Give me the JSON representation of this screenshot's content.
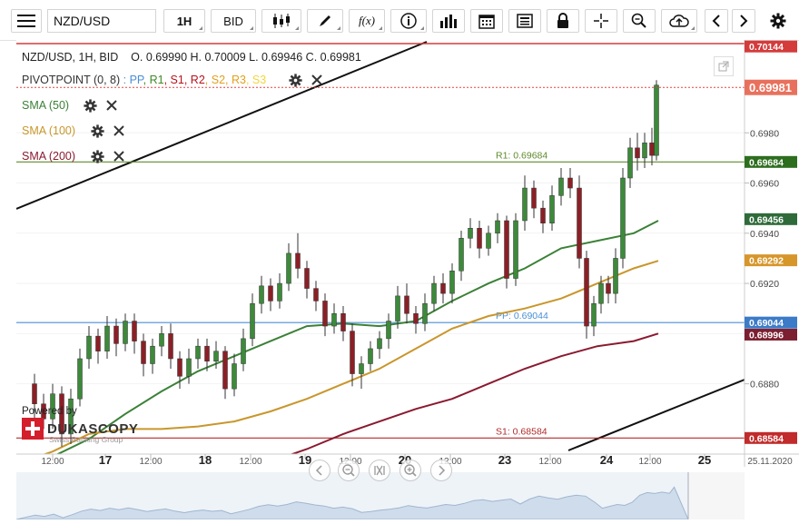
{
  "toolbar": {
    "menu_icon": "hamburger-menu-icon",
    "symbol": "NZD/USD",
    "timeframe": "1H",
    "side": "BID",
    "icons": [
      "candlestick-type-icon",
      "pencil-draw-icon",
      "function-fx-icon",
      "info-icon",
      "volume-bars-icon",
      "calendar-icon",
      "news-icon",
      "lock-icon",
      "crosshair-icon",
      "zoom-icon",
      "cloud-upload-icon",
      "arrow-left-icon",
      "arrow-right-icon",
      "gear-icon"
    ],
    "fx_label": "f(x)"
  },
  "header": {
    "symbol_line": "NZD/USD, 1H, BID",
    "ohlc": "O. 0.69990 H. 0.70009 L. 0.69946 C. 0.69981"
  },
  "indicators": {
    "pivot": {
      "label": "PIVOTPOINT (0, 8)",
      "sep": ":",
      "parts": [
        {
          "text": "PP",
          "color": "#4a8fd6"
        },
        {
          "text": "R1",
          "color": "#3f8a24"
        },
        {
          "text": "S1",
          "color": "#b8121b"
        },
        {
          "text": "R2",
          "color": "#b8121b"
        },
        {
          "text": "S2",
          "color": "#e3a01b"
        },
        {
          "text": "R3",
          "color": "#e3a01b"
        },
        {
          "text": "S3",
          "color": "#f2d73a"
        }
      ]
    },
    "sma": [
      {
        "label": "SMA (50)",
        "color": "#3b8137"
      },
      {
        "label": "SMA (100)",
        "color": "#c9962b"
      },
      {
        "label": "SMA (200)",
        "color": "#8a1a30"
      }
    ]
  },
  "watermark": {
    "powered_by": "Powered by",
    "brand": "DUKASCOPY",
    "tagline": "Swiss Banking Group"
  },
  "chart_data": {
    "type": "line",
    "title": "NZD/USD, 1H, BID",
    "ylim": [
      0.6852,
      0.7017
    ],
    "y_ticks": [
      0.688,
      0.69,
      0.692,
      0.694,
      0.696,
      0.698
    ],
    "x_ticks": [
      "12:00",
      "17",
      "12:00",
      "18",
      "12:00",
      "19",
      "12:00",
      "20",
      "12:00",
      "23",
      "12:00",
      "24",
      "12:00",
      "25"
    ],
    "x_bold": [
      "17",
      "18",
      "19",
      "20",
      "23",
      "24",
      "25"
    ],
    "date_label": "25.11.2020",
    "price_badges": [
      {
        "value": "0.70144",
        "color": "#d43b3b"
      },
      {
        "value": "0.69981",
        "color": "#e8715d"
      },
      {
        "value": "0.69684",
        "color": "#2e6e1f"
      },
      {
        "value": "0.69456",
        "color": "#2f6b3a"
      },
      {
        "value": "0.69292",
        "color": "#d7962a"
      },
      {
        "value": "0.69044",
        "color": "#3c7bc7"
      },
      {
        "value": "0.68996",
        "color": "#7c1f31"
      },
      {
        "value": "0.68584",
        "color": "#c12b2b"
      }
    ],
    "pivot_levels": [
      {
        "name": "R1",
        "label": "R1: 0.69684",
        "value": 0.69684,
        "color": "#5f8a2b"
      },
      {
        "name": "PP",
        "label": "PP: 0.69044",
        "value": 0.69044,
        "color": "#4a8fd6"
      },
      {
        "name": "S1",
        "label": "S1: 0.68584",
        "value": 0.68584,
        "color": "#b22a2a"
      }
    ],
    "current_price": 0.69981,
    "series": [
      {
        "name": "SMA (50)",
        "color": "#3b8137",
        "values": [
          [
            0,
            0.6848
          ],
          [
            40,
            0.6851
          ],
          [
            80,
            0.6858
          ],
          [
            120,
            0.6868
          ],
          [
            160,
            0.6877
          ],
          [
            200,
            0.6885
          ],
          [
            240,
            0.6891
          ],
          [
            280,
            0.6897
          ],
          [
            320,
            0.6903
          ],
          [
            360,
            0.6904
          ],
          [
            400,
            0.6903
          ],
          [
            440,
            0.6905
          ],
          [
            480,
            0.6913
          ],
          [
            520,
            0.692
          ],
          [
            560,
            0.6926
          ],
          [
            600,
            0.6934
          ],
          [
            640,
            0.6937
          ],
          [
            680,
            0.694
          ],
          [
            707,
            0.6945
          ]
        ]
      },
      {
        "name": "SMA (100)",
        "color": "#c9962b",
        "values": [
          [
            0,
            0.6848
          ],
          [
            40,
            0.6853
          ],
          [
            80,
            0.686
          ],
          [
            120,
            0.6862
          ],
          [
            160,
            0.6862
          ],
          [
            200,
            0.6863
          ],
          [
            240,
            0.6865
          ],
          [
            280,
            0.6869
          ],
          [
            320,
            0.6874
          ],
          [
            360,
            0.688
          ],
          [
            400,
            0.6886
          ],
          [
            440,
            0.6894
          ],
          [
            480,
            0.6902
          ],
          [
            520,
            0.6907
          ],
          [
            560,
            0.691
          ],
          [
            600,
            0.6914
          ],
          [
            640,
            0.692
          ],
          [
            680,
            0.6926
          ],
          [
            707,
            0.6929
          ]
        ]
      },
      {
        "name": "SMA (200)",
        "color": "#8a1a30",
        "values": [
          [
            240,
            0.6844
          ],
          [
            280,
            0.6849
          ],
          [
            320,
            0.6854
          ],
          [
            360,
            0.686
          ],
          [
            400,
            0.6865
          ],
          [
            440,
            0.687
          ],
          [
            480,
            0.6874
          ],
          [
            520,
            0.688
          ],
          [
            560,
            0.6886
          ],
          [
            600,
            0.6891
          ],
          [
            640,
            0.6895
          ],
          [
            680,
            0.6897
          ],
          [
            707,
            0.69
          ]
        ]
      }
    ],
    "candles": [
      {
        "x": 20,
        "o": 0.688,
        "c": 0.6872,
        "h": 0.6884,
        "l": 0.6866
      },
      {
        "x": 30,
        "o": 0.6872,
        "c": 0.6866,
        "h": 0.6876,
        "l": 0.6862
      },
      {
        "x": 40,
        "o": 0.6866,
        "c": 0.6876,
        "h": 0.688,
        "l": 0.6862
      },
      {
        "x": 50,
        "o": 0.6876,
        "c": 0.686,
        "h": 0.6879,
        "l": 0.6855
      },
      {
        "x": 60,
        "o": 0.686,
        "c": 0.6874,
        "h": 0.6878,
        "l": 0.6856
      },
      {
        "x": 70,
        "o": 0.6874,
        "c": 0.689,
        "h": 0.6894,
        "l": 0.6871
      },
      {
        "x": 80,
        "o": 0.689,
        "c": 0.6899,
        "h": 0.6903,
        "l": 0.6886
      },
      {
        "x": 90,
        "o": 0.6899,
        "c": 0.6893,
        "h": 0.6902,
        "l": 0.6888
      },
      {
        "x": 100,
        "o": 0.6893,
        "c": 0.6903,
        "h": 0.6907,
        "l": 0.689
      },
      {
        "x": 110,
        "o": 0.6903,
        "c": 0.6896,
        "h": 0.6906,
        "l": 0.6891
      },
      {
        "x": 120,
        "o": 0.6896,
        "c": 0.6905,
        "h": 0.6908,
        "l": 0.6893
      },
      {
        "x": 130,
        "o": 0.6905,
        "c": 0.6897,
        "h": 0.6908,
        "l": 0.6892
      },
      {
        "x": 140,
        "o": 0.6897,
        "c": 0.6888,
        "h": 0.69,
        "l": 0.6883
      },
      {
        "x": 150,
        "o": 0.6888,
        "c": 0.6895,
        "h": 0.6898,
        "l": 0.6884
      },
      {
        "x": 160,
        "o": 0.6895,
        "c": 0.69,
        "h": 0.6903,
        "l": 0.6891
      },
      {
        "x": 170,
        "o": 0.69,
        "c": 0.689,
        "h": 0.6904,
        "l": 0.6886
      },
      {
        "x": 180,
        "o": 0.689,
        "c": 0.6883,
        "h": 0.6893,
        "l": 0.6878
      },
      {
        "x": 190,
        "o": 0.6883,
        "c": 0.689,
        "h": 0.6894,
        "l": 0.688
      },
      {
        "x": 200,
        "o": 0.689,
        "c": 0.6895,
        "h": 0.6898,
        "l": 0.6886
      },
      {
        "x": 210,
        "o": 0.6895,
        "c": 0.6889,
        "h": 0.6898,
        "l": 0.6885
      },
      {
        "x": 220,
        "o": 0.6889,
        "c": 0.6893,
        "h": 0.6897,
        "l": 0.6886
      },
      {
        "x": 230,
        "o": 0.6893,
        "c": 0.6878,
        "h": 0.6895,
        "l": 0.6874
      },
      {
        "x": 240,
        "o": 0.6878,
        "c": 0.6888,
        "h": 0.6892,
        "l": 0.6875
      },
      {
        "x": 250,
        "o": 0.6888,
        "c": 0.6898,
        "h": 0.6902,
        "l": 0.6885
      },
      {
        "x": 260,
        "o": 0.6898,
        "c": 0.6912,
        "h": 0.6916,
        "l": 0.6895
      },
      {
        "x": 270,
        "o": 0.6912,
        "c": 0.6919,
        "h": 0.6923,
        "l": 0.6908
      },
      {
        "x": 280,
        "o": 0.6919,
        "c": 0.6913,
        "h": 0.6922,
        "l": 0.6909
      },
      {
        "x": 290,
        "o": 0.6913,
        "c": 0.692,
        "h": 0.6924,
        "l": 0.691
      },
      {
        "x": 300,
        "o": 0.692,
        "c": 0.6932,
        "h": 0.6936,
        "l": 0.6917
      },
      {
        "x": 310,
        "o": 0.6932,
        "c": 0.6926,
        "h": 0.694,
        "l": 0.6922
      },
      {
        "x": 320,
        "o": 0.6926,
        "c": 0.6918,
        "h": 0.6929,
        "l": 0.6914
      },
      {
        "x": 330,
        "o": 0.6918,
        "c": 0.6913,
        "h": 0.6921,
        "l": 0.6909
      },
      {
        "x": 340,
        "o": 0.6913,
        "c": 0.6903,
        "h": 0.6916,
        "l": 0.6899
      },
      {
        "x": 350,
        "o": 0.6903,
        "c": 0.6908,
        "h": 0.6912,
        "l": 0.69
      },
      {
        "x": 360,
        "o": 0.6908,
        "c": 0.6901,
        "h": 0.6911,
        "l": 0.6897
      },
      {
        "x": 370,
        "o": 0.6901,
        "c": 0.6884,
        "h": 0.6904,
        "l": 0.6879
      },
      {
        "x": 380,
        "o": 0.6884,
        "c": 0.6888,
        "h": 0.6891,
        "l": 0.6878
      },
      {
        "x": 390,
        "o": 0.6888,
        "c": 0.6894,
        "h": 0.6897,
        "l": 0.6885
      },
      {
        "x": 400,
        "o": 0.6894,
        "c": 0.6898,
        "h": 0.6901,
        "l": 0.689
      },
      {
        "x": 410,
        "o": 0.6898,
        "c": 0.6905,
        "h": 0.6908,
        "l": 0.6894
      },
      {
        "x": 420,
        "o": 0.6905,
        "c": 0.6915,
        "h": 0.6919,
        "l": 0.6902
      },
      {
        "x": 430,
        "o": 0.6915,
        "c": 0.6908,
        "h": 0.692,
        "l": 0.6904
      },
      {
        "x": 440,
        "o": 0.6908,
        "c": 0.6904,
        "h": 0.6911,
        "l": 0.69
      },
      {
        "x": 450,
        "o": 0.6904,
        "c": 0.6912,
        "h": 0.6916,
        "l": 0.6901
      },
      {
        "x": 460,
        "o": 0.6912,
        "c": 0.692,
        "h": 0.6923,
        "l": 0.6909
      },
      {
        "x": 470,
        "o": 0.692,
        "c": 0.6916,
        "h": 0.6924,
        "l": 0.6912
      },
      {
        "x": 480,
        "o": 0.6916,
        "c": 0.6925,
        "h": 0.6928,
        "l": 0.6912
      },
      {
        "x": 490,
        "o": 0.6925,
        "c": 0.6938,
        "h": 0.6941,
        "l": 0.6921
      },
      {
        "x": 500,
        "o": 0.6938,
        "c": 0.6942,
        "h": 0.6946,
        "l": 0.6934
      },
      {
        "x": 510,
        "o": 0.6942,
        "c": 0.6934,
        "h": 0.6945,
        "l": 0.693
      },
      {
        "x": 520,
        "o": 0.6934,
        "c": 0.694,
        "h": 0.6943,
        "l": 0.6931
      },
      {
        "x": 530,
        "o": 0.694,
        "c": 0.6945,
        "h": 0.6948,
        "l": 0.6936
      },
      {
        "x": 540,
        "o": 0.6945,
        "c": 0.6922,
        "h": 0.6947,
        "l": 0.6918
      },
      {
        "x": 550,
        "o": 0.6922,
        "c": 0.6945,
        "h": 0.6948,
        "l": 0.6919
      },
      {
        "x": 560,
        "o": 0.6945,
        "c": 0.6958,
        "h": 0.6963,
        "l": 0.6941
      },
      {
        "x": 570,
        "o": 0.6958,
        "c": 0.695,
        "h": 0.6961,
        "l": 0.6946
      },
      {
        "x": 580,
        "o": 0.695,
        "c": 0.6944,
        "h": 0.6953,
        "l": 0.694
      },
      {
        "x": 590,
        "o": 0.6944,
        "c": 0.6955,
        "h": 0.6959,
        "l": 0.6941
      },
      {
        "x": 600,
        "o": 0.6955,
        "c": 0.6962,
        "h": 0.6966,
        "l": 0.6951
      },
      {
        "x": 610,
        "o": 0.6962,
        "c": 0.6958,
        "h": 0.6966,
        "l": 0.6954
      },
      {
        "x": 620,
        "o": 0.6958,
        "c": 0.693,
        "h": 0.6963,
        "l": 0.6926
      },
      {
        "x": 628,
        "o": 0.693,
        "c": 0.6903,
        "h": 0.6933,
        "l": 0.6898
      },
      {
        "x": 636,
        "o": 0.6903,
        "c": 0.6912,
        "h": 0.6915,
        "l": 0.6899
      },
      {
        "x": 644,
        "o": 0.6912,
        "c": 0.692,
        "h": 0.6923,
        "l": 0.6908
      },
      {
        "x": 652,
        "o": 0.692,
        "c": 0.6916,
        "h": 0.6923,
        "l": 0.6912
      },
      {
        "x": 660,
        "o": 0.6916,
        "c": 0.693,
        "h": 0.6934,
        "l": 0.6912
      },
      {
        "x": 668,
        "o": 0.693,
        "c": 0.6962,
        "h": 0.6966,
        "l": 0.6926
      },
      {
        "x": 676,
        "o": 0.6962,
        "c": 0.6974,
        "h": 0.6978,
        "l": 0.6958
      },
      {
        "x": 684,
        "o": 0.6974,
        "c": 0.697,
        "h": 0.698,
        "l": 0.6965
      },
      {
        "x": 692,
        "o": 0.697,
        "c": 0.6976,
        "h": 0.698,
        "l": 0.6966
      },
      {
        "x": 700,
        "o": 0.6976,
        "c": 0.6971,
        "h": 0.6982,
        "l": 0.6967
      },
      {
        "x": 705,
        "o": 0.6971,
        "c": 0.6999,
        "h": 0.7001,
        "l": 0.6969
      }
    ]
  }
}
